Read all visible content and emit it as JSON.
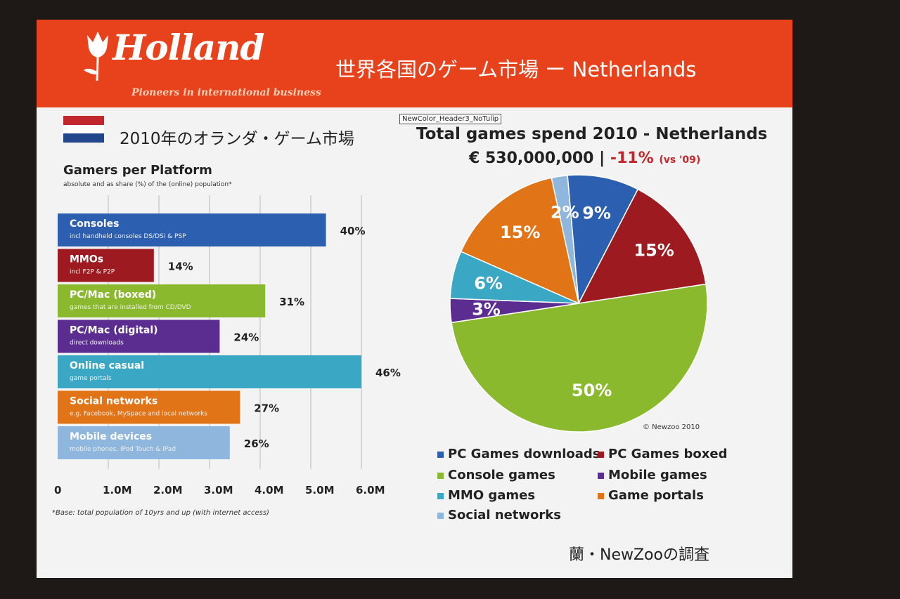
{
  "header": {
    "logo_text": "Holland",
    "logo_tagline": "Pioneers in international business",
    "title": "世界各国のゲーム市場 ー Netherlands"
  },
  "tooltip": "NewColor_Header3_NoTulip",
  "left_panel": {
    "heading": "2010年のオランダ・ゲーム市場",
    "footnote": "*Base: total population of 10yrs and up (with internet access)"
  },
  "right_panel": {
    "title": "Total games spend 2010 - Netherlands",
    "total": "€ 530,000,000",
    "separator": "|",
    "change": "-11%",
    "change_note": "(vs '09)",
    "copyright": "© Newzoo 2010"
  },
  "source": "蘭・NewZooの調査",
  "colors": {
    "banner": "#e8421c",
    "blue": "#2d5fb0",
    "darkred": "#9d1a20",
    "green": "#8bb92e",
    "purple": "#5b2d91",
    "teal": "#3aa8c4",
    "orange": "#e07416",
    "lightblue": "#8fb6dc"
  },
  "chart_data": [
    {
      "type": "bar",
      "title": "Gamers per Platform",
      "subtitle": "absolute and as share (%) of the (online) population*",
      "orientation": "horizontal",
      "xlim": [
        0,
        6.0
      ],
      "x_ticks": [
        "0",
        "1.0M",
        "2.0M",
        "3.0M",
        "4.0M",
        "5.0M",
        "6.0M"
      ],
      "categories": [
        {
          "name": "Consoles",
          "desc": "incl handheld consoles DS/DSi & PSP",
          "value": 5.3,
          "share": "40%",
          "color": "#2d5fb0"
        },
        {
          "name": "MMOs",
          "desc": "incl F2P & P2P",
          "value": 1.9,
          "share": "14%",
          "color": "#9d1a20"
        },
        {
          "name": "PC/Mac (boxed)",
          "desc": "games that are installed from CD/DVD",
          "value": 4.1,
          "share": "31%",
          "color": "#8bb92e"
        },
        {
          "name": "PC/Mac (digital)",
          "desc": "direct downloads",
          "value": 3.2,
          "share": "24%",
          "color": "#5b2d91"
        },
        {
          "name": "Online casual",
          "desc": "game portals",
          "value": 6.0,
          "share": "46%",
          "color": "#3aa8c4"
        },
        {
          "name": "Social networks",
          "desc": "e.g. Facebook, MySpace and local networks",
          "value": 3.6,
          "share": "27%",
          "color": "#e07416"
        },
        {
          "name": "Mobile devices",
          "desc": "mobile phones, iPod Touch & iPad",
          "value": 3.4,
          "share": "26%",
          "color": "#8fb6dc"
        }
      ]
    },
    {
      "type": "pie",
      "slices": [
        {
          "label": "9%",
          "value": 9,
          "color": "#2d5fb0"
        },
        {
          "label": "15%",
          "value": 15,
          "color": "#9d1a20"
        },
        {
          "label": "50%",
          "value": 50,
          "color": "#8bb92e"
        },
        {
          "label": "3%",
          "value": 3,
          "color": "#5b2d91"
        },
        {
          "label": "6%",
          "value": 6,
          "color": "#3aa8c4"
        },
        {
          "label": "15%",
          "value": 15,
          "color": "#e07416"
        },
        {
          "label": "2%",
          "value": 2,
          "color": "#8fb6dc"
        }
      ],
      "legend": [
        {
          "label": "PC Games downloads",
          "color": "#2d5fb0"
        },
        {
          "label": "PC Games boxed",
          "color": "#9d1a20"
        },
        {
          "label": "Console games",
          "color": "#8bb92e"
        },
        {
          "label": "Mobile games",
          "color": "#5b2d91"
        },
        {
          "label": "MMO games",
          "color": "#3aa8c4"
        },
        {
          "label": "Game portals",
          "color": "#e07416"
        },
        {
          "label": "Social networks",
          "color": "#8fb6dc"
        }
      ]
    }
  ]
}
